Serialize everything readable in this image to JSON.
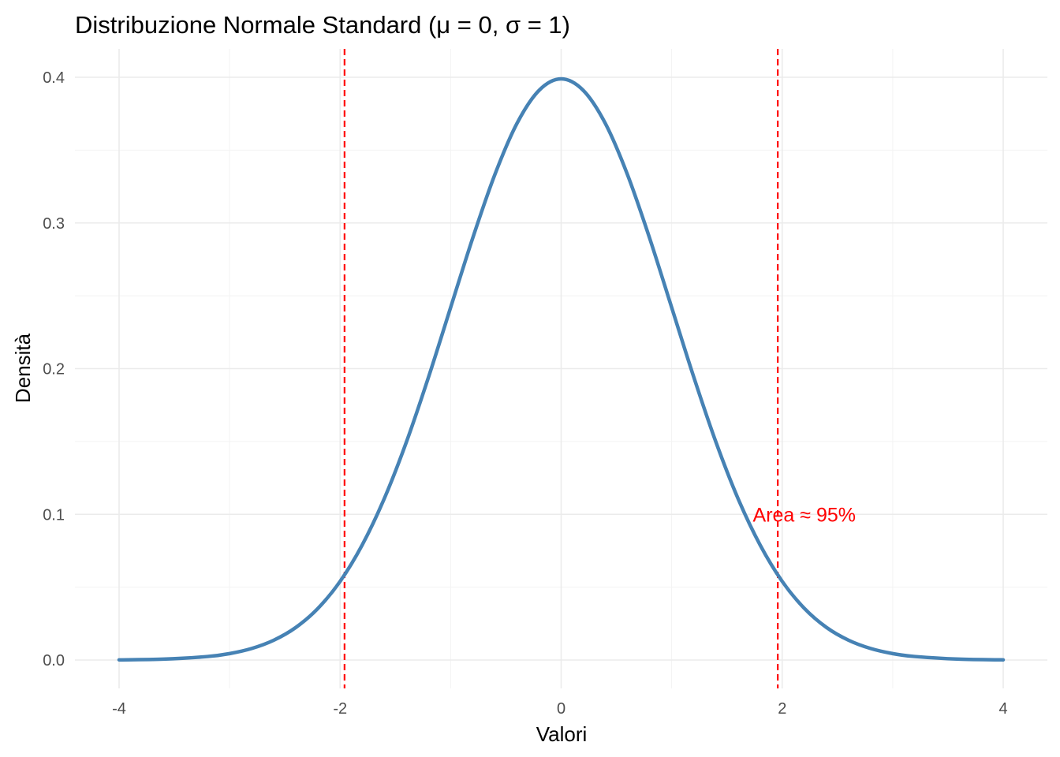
{
  "chart_data": {
    "type": "line",
    "title": "Distribuzione Normale Standard (μ = 0, σ = 1)",
    "xlabel": "Valori",
    "ylabel": "Densità",
    "xlim": [
      -4,
      4
    ],
    "ylim": [
      0,
      0.4
    ],
    "x_ticks": [
      -4,
      -2,
      0,
      2,
      4
    ],
    "x_tick_labels": [
      "-4",
      "-2",
      "0",
      "2",
      "4"
    ],
    "y_ticks": [
      0.0,
      0.1,
      0.2,
      0.3,
      0.4
    ],
    "y_tick_labels": [
      "0.0",
      "0.1",
      "0.2",
      "0.3",
      "0.4"
    ],
    "grid": true,
    "series": [
      {
        "color": "#4682b4",
        "x": [
          -4.0,
          -3.6,
          -3.2,
          -3.0,
          -2.8,
          -2.6,
          -2.4,
          -2.2,
          -2.0,
          -1.8,
          -1.6,
          -1.4,
          -1.2,
          -1.0,
          -0.8,
          -0.6,
          -0.4,
          -0.2,
          0.0,
          0.2,
          0.4,
          0.6,
          0.8,
          1.0,
          1.2,
          1.4,
          1.6,
          1.8,
          2.0,
          2.2,
          2.4,
          2.6,
          2.8,
          3.0,
          3.2,
          3.6,
          4.0
        ],
        "y": [
          0.0001,
          0.0006,
          0.0024,
          0.0044,
          0.0079,
          0.0136,
          0.0224,
          0.0355,
          0.054,
          0.079,
          0.1109,
          0.1497,
          0.1942,
          0.242,
          0.2897,
          0.3332,
          0.3683,
          0.391,
          0.3989,
          0.391,
          0.3683,
          0.3332,
          0.2897,
          0.242,
          0.1942,
          0.1497,
          0.1109,
          0.079,
          0.054,
          0.0355,
          0.0224,
          0.0136,
          0.0079,
          0.0044,
          0.0024,
          0.0006,
          0.0001
        ]
      }
    ],
    "vlines": [
      {
        "x": -1.96,
        "color": "#ff0000",
        "style": "dashed"
      },
      {
        "x": 1.96,
        "color": "#ff0000",
        "style": "dashed"
      }
    ],
    "annotations": [
      {
        "text": "Area ≈ 95%",
        "x": 2.2,
        "y": 0.1,
        "color": "#ff0000"
      }
    ]
  }
}
